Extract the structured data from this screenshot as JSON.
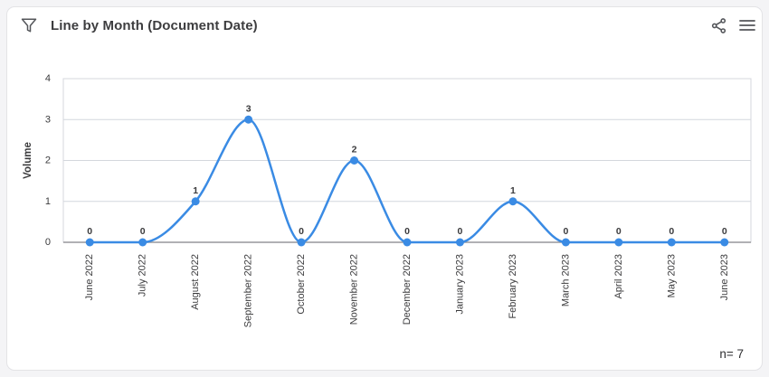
{
  "header": {
    "title": "Line by Month (Document Date)",
    "filter_icon": "filter-funnel",
    "share_icon": "share-nodes",
    "menu_icon": "hamburger-menu"
  },
  "footer": {
    "n_label": "n= 7"
  },
  "chart_data": {
    "type": "line",
    "title": "Line by Month (Document Date)",
    "categories": [
      "June 2022",
      "July 2022",
      "August 2022",
      "September 2022",
      "October 2022",
      "November 2022",
      "December 2022",
      "January 2023",
      "February 2023",
      "March 2023",
      "April 2023",
      "May 2023",
      "June 2023"
    ],
    "values": [
      0,
      0,
      1,
      3,
      0,
      2,
      0,
      0,
      1,
      0,
      0,
      0,
      0
    ],
    "xlabel": "",
    "ylabel": "Volume",
    "ylim": [
      0,
      4
    ],
    "yticks": [
      0,
      1,
      2,
      3,
      4
    ],
    "grid": true,
    "legend": false,
    "smooth": "monotone",
    "point_labels": true,
    "n_count": 7,
    "line_color": "#3a8be4",
    "point_color": "#3a8be4"
  },
  "colors": {
    "page_bg": "#f4f4f6",
    "panel_bg": "#ffffff",
    "panel_border": "#e3e3e6",
    "grid_line": "#d4d7dd",
    "axis_line": "#97979b",
    "tick_text": "#3b3b3d",
    "value_label_text": "#3a3a3c",
    "icon": "#54565a"
  }
}
